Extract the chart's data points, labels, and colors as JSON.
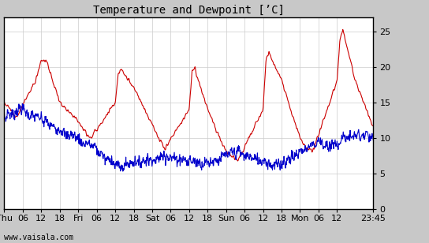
{
  "title": "Temperature and Dewpoint [’C]",
  "background_color": "#c8c8c8",
  "plot_bg_color": "#ffffff",
  "grid_color": "#cccccc",
  "temp_color": "#cc0000",
  "dew_color": "#0000cc",
  "ylim": [
    0,
    27
  ],
  "yticks": [
    0,
    5,
    10,
    15,
    20,
    25
  ],
  "footer": "www.vaisala.com",
  "title_fontsize": 10,
  "tick_fontsize": 8,
  "line_width": 0.8,
  "xtick_pos": [
    0,
    0.25,
    0.5,
    0.75,
    1.0,
    1.25,
    1.5,
    1.75,
    2.0,
    2.25,
    2.5,
    2.75,
    3.0,
    3.25,
    3.5,
    3.75,
    4.0,
    4.25,
    4.5,
    4.9896
  ],
  "xtick_labels": [
    "Thu",
    "06",
    "12",
    "18",
    "Fri",
    "06",
    "12",
    "18",
    "Sat",
    "06",
    "12",
    "18",
    "Sun",
    "06",
    "12",
    "18",
    "Mon",
    "06",
    "12",
    "23:45"
  ],
  "temp_ctrl_x": [
    0,
    0.08,
    0.17,
    0.42,
    0.5,
    0.54,
    0.58,
    0.75,
    1.0,
    1.08,
    1.17,
    1.5,
    1.54,
    1.58,
    1.62,
    1.75,
    2.0,
    2.08,
    2.17,
    2.5,
    2.54,
    2.58,
    2.75,
    3.0,
    3.08,
    3.17,
    3.5,
    3.54,
    3.58,
    3.75,
    4.0,
    4.08,
    4.17,
    4.5,
    4.54,
    4.58,
    4.75,
    4.9896
  ],
  "temp_ctrl_y": [
    15,
    14,
    13,
    18,
    21,
    21,
    20.5,
    15,
    12.5,
    11,
    10,
    15,
    19,
    19.5,
    19,
    17,
    12,
    10,
    8.5,
    14,
    19.5,
    19.5,
    14,
    8,
    7.5,
    7,
    14,
    21,
    22,
    18,
    10,
    8.5,
    8,
    18,
    24,
    25,
    18,
    11.5
  ],
  "dew_ctrl_x": [
    0,
    0.08,
    0.25,
    0.42,
    0.58,
    0.75,
    1.0,
    1.17,
    1.42,
    1.58,
    1.75,
    2.0,
    2.17,
    2.42,
    2.58,
    2.75,
    3.0,
    3.17,
    3.42,
    3.58,
    3.75,
    4.0,
    4.17,
    4.25,
    4.42,
    4.58,
    4.75,
    4.9896
  ],
  "dew_ctrl_y": [
    13,
    13.5,
    14,
    13,
    12,
    11,
    10,
    9,
    7,
    6,
    6.5,
    7,
    7.5,
    7,
    6.5,
    6.5,
    7.5,
    8,
    7,
    6.5,
    6.5,
    8,
    9,
    9.5,
    8.5,
    10,
    10.5,
    10
  ]
}
